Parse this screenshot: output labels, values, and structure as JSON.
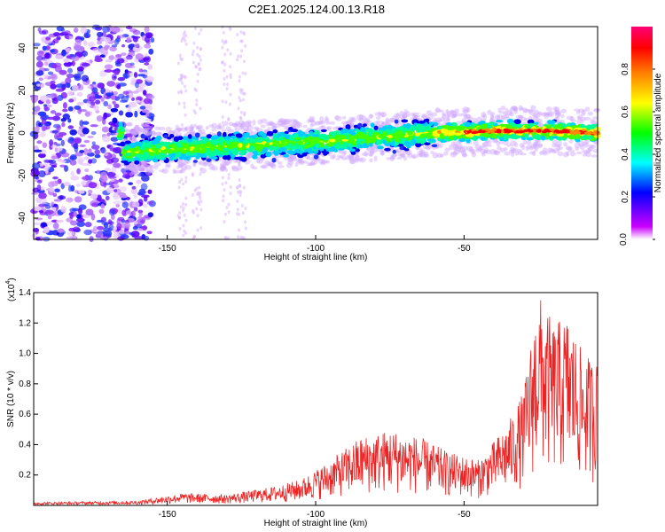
{
  "title": "C2E1.2025.124.00.13.R18",
  "chart_data": [
    {
      "type": "heatmap",
      "xlabel": "Height of straight line (km)",
      "ylabel": "Frequency (Hz)",
      "xlim": [
        -195,
        -5
      ],
      "ylim": [
        -50,
        50
      ],
      "xticks": [
        -150,
        -100,
        -50
      ],
      "yticks": [
        -40,
        -20,
        0,
        20,
        40
      ],
      "colorbar": {
        "label": "Normalized spectral amplitude",
        "range": [
          0,
          1
        ],
        "ticks": [
          "0.0",
          "0.2",
          "0.4",
          "0.6",
          "0.8"
        ]
      },
      "ridge": {
        "description_points_x": [
          -165,
          -140,
          -100,
          -60,
          -40,
          -20,
          -5
        ],
        "description_points_y": [
          -9,
          -7,
          -4,
          0,
          1,
          1,
          0
        ],
        "peak_amplitude_region_x": [
          -50,
          -5
        ]
      },
      "colors": [
        "#ffffff",
        "#cc00ff",
        "#5500ff",
        "#0000ff",
        "#00ffff",
        "#00ff00",
        "#ffff00",
        "#ff8000",
        "#ff0000",
        "#ff0066"
      ]
    },
    {
      "type": "line",
      "xlabel": "Height of straight line (km)",
      "ylabel": "SNR (10 * v/v)",
      "y_multiplier": "(x10",
      "y_multiplier_exp": "4",
      "xlim": [
        -195,
        -5
      ],
      "ylim": [
        0,
        1.4
      ],
      "xticks": [
        -150,
        -100,
        -50
      ],
      "yticks": [
        "0.2",
        "0.4",
        "0.6",
        "0.8",
        "1.0",
        "1.2",
        "1.4"
      ],
      "series": [
        {
          "color": "#ee2222",
          "envelope_x": [
            -195,
            -160,
            -145,
            -130,
            -115,
            -105,
            -95,
            -85,
            -75,
            -65,
            -55,
            -45,
            -40,
            -35,
            -30,
            -25,
            -20,
            -15,
            -10,
            -5
          ],
          "envelope_y": [
            0.02,
            0.03,
            0.08,
            0.07,
            0.12,
            0.17,
            0.3,
            0.45,
            0.5,
            0.45,
            0.35,
            0.3,
            0.42,
            0.55,
            0.75,
            1.4,
            1.2,
            1.25,
            1.0,
            0.95
          ]
        }
      ]
    }
  ]
}
